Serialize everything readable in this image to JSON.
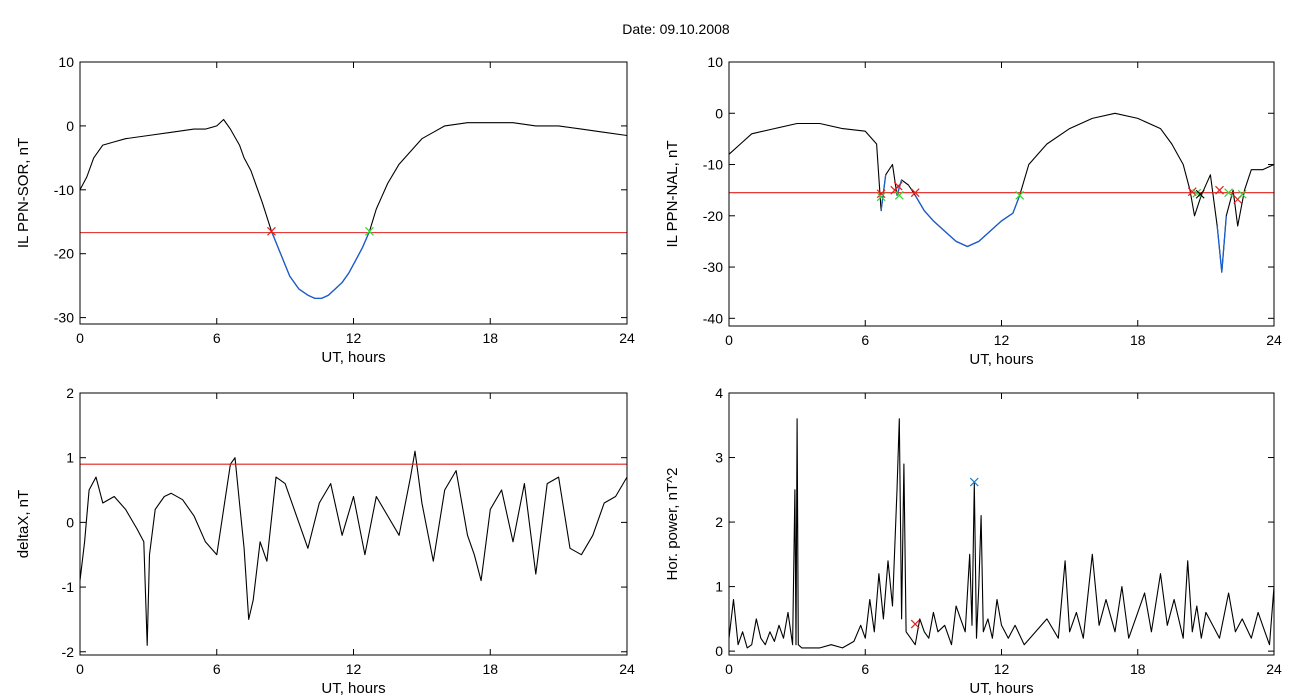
{
  "page": {
    "title": "Date:  09.10.2008"
  },
  "colors": {
    "trace": "#000000",
    "highlight": "#1a5fd0",
    "threshold": "#e0201c",
    "marker_red": "#e0201c",
    "marker_green": "#3bd13b",
    "marker_blue": "#1a7fd0"
  },
  "chart_data": [
    {
      "type": "line",
      "id": "ppn-sor",
      "title": "",
      "xlabel": "UT, hours",
      "ylabel": "IL PPN-SOR, nT",
      "xlim": [
        0,
        24
      ],
      "ylim": [
        -31,
        10
      ],
      "x_ticks": [
        0,
        6,
        12,
        18,
        24
      ],
      "y_ticks": [
        -30,
        -20,
        -10,
        0,
        10
      ],
      "grid": false,
      "threshold": -16.7,
      "series": [
        {
          "x": [
            0,
            0.3,
            0.6,
            1,
            1.5,
            2,
            3,
            4,
            5,
            5.5,
            6,
            6.3,
            6.6,
            7,
            7.2,
            7.5,
            8,
            8.4,
            8.8,
            9.2,
            9.6,
            10,
            10.3,
            10.6,
            10.9,
            11.2,
            11.5,
            11.8,
            12.1,
            12.4,
            12.7,
            13,
            13.5,
            14,
            14.5,
            15,
            15.5,
            16,
            17,
            18,
            19,
            20,
            21,
            22,
            23,
            24
          ],
          "y": [
            -10,
            -8,
            -5,
            -3,
            -2.5,
            -2,
            -1.5,
            -1,
            -0.5,
            -0.5,
            0,
            1,
            -0.5,
            -3,
            -5,
            -7,
            -12,
            -16.5,
            -20,
            -23.5,
            -25.5,
            -26.5,
            -27,
            -27,
            -26.5,
            -25.5,
            -24.5,
            -23,
            -21,
            -19,
            -16.5,
            -13,
            -9,
            -6,
            -4,
            -2,
            -1,
            0,
            0.5,
            0.5,
            0.5,
            0,
            0,
            -0.5,
            -1,
            -1.5
          ]
        }
      ],
      "highlight_range": [
        8.4,
        12.7
      ],
      "markers": [
        {
          "x": 8.4,
          "y": -16.5,
          "color": "red"
        },
        {
          "x": 12.7,
          "y": -16.5,
          "color": "green"
        }
      ]
    },
    {
      "type": "line",
      "id": "ppn-nal",
      "title": "",
      "xlabel": "UT, hours",
      "ylabel": "IL PPN-NAL, nT",
      "xlim": [
        0,
        24
      ],
      "ylim": [
        -41.5,
        10
      ],
      "x_ticks": [
        0,
        6,
        12,
        18,
        24
      ],
      "y_ticks": [
        -40,
        -30,
        -20,
        -10,
        0,
        10
      ],
      "grid": false,
      "threshold": -15.5,
      "series": [
        {
          "x": [
            0,
            0.5,
            1,
            2,
            3,
            4,
            5,
            6,
            6.5,
            6.7,
            6.9,
            7.2,
            7.4,
            7.6,
            7.9,
            8.2,
            8.6,
            9,
            9.5,
            10,
            10.5,
            11,
            11.5,
            12,
            12.5,
            12.8,
            13.2,
            13.6,
            14,
            15,
            16,
            17,
            18,
            19,
            19.5,
            20,
            20.3,
            20.5,
            20.8,
            21.2,
            21.5,
            21.7,
            21.9,
            22.2,
            22.4,
            22.7,
            23,
            23.5,
            24
          ],
          "y": [
            -8,
            -6,
            -4,
            -3,
            -2,
            -2,
            -3,
            -3.5,
            -6,
            -19,
            -12,
            -10,
            -16,
            -13,
            -14,
            -16,
            -19,
            -21,
            -23,
            -25,
            -26,
            -25,
            -23,
            -21,
            -19.5,
            -16,
            -10,
            -8,
            -6,
            -3,
            -1,
            0,
            -1,
            -3,
            -6,
            -10,
            -15,
            -20,
            -16,
            -12,
            -22,
            -31,
            -20,
            -15,
            -22,
            -15,
            -11,
            -11,
            -10
          ]
        }
      ],
      "highlight_ranges": [
        [
          6.6,
          6.9
        ],
        [
          7.3,
          7.6
        ],
        [
          8.2,
          12.8
        ],
        [
          21.5,
          21.9
        ]
      ],
      "markers": [
        {
          "x": 6.7,
          "y": -15.7,
          "color": "red"
        },
        {
          "x": 6.7,
          "y": -16.3,
          "color": "green"
        },
        {
          "x": 7.3,
          "y": -15,
          "color": "red"
        },
        {
          "x": 7.45,
          "y": -14.2,
          "color": "red"
        },
        {
          "x": 7.5,
          "y": -16,
          "color": "green"
        },
        {
          "x": 8.2,
          "y": -15.5,
          "color": "red"
        },
        {
          "x": 12.8,
          "y": -16,
          "color": "green"
        },
        {
          "x": 20.4,
          "y": -15.3,
          "color": "red"
        },
        {
          "x": 20.6,
          "y": -15.6,
          "color": "green"
        },
        {
          "x": 20.75,
          "y": -15.8,
          "color": "black"
        },
        {
          "x": 21.6,
          "y": -15,
          "color": "red"
        },
        {
          "x": 22.0,
          "y": -15.5,
          "color": "green"
        },
        {
          "x": 22.4,
          "y": -16.8,
          "color": "red"
        },
        {
          "x": 22.6,
          "y": -15.8,
          "color": "green"
        }
      ]
    },
    {
      "type": "line",
      "id": "deltax",
      "title": "",
      "xlabel": "UT, hours",
      "ylabel": "deltaX, nT",
      "xlim": [
        0,
        24
      ],
      "ylim": [
        -2.05,
        2
      ],
      "x_ticks": [
        0,
        6,
        12,
        18,
        24
      ],
      "y_ticks": [
        -2,
        -1,
        0,
        1,
        2
      ],
      "grid": false,
      "threshold": 0.9,
      "series": [
        {
          "x": [
            0,
            0.2,
            0.4,
            0.7,
            1,
            1.5,
            2,
            2.5,
            2.8,
            2.95,
            3.05,
            3.3,
            3.7,
            4,
            4.5,
            5,
            5.5,
            6,
            6.3,
            6.6,
            6.8,
            7,
            7.2,
            7.4,
            7.6,
            7.9,
            8.2,
            8.6,
            9,
            9.5,
            10,
            10.5,
            11,
            11.5,
            12,
            12.5,
            13,
            13.5,
            14,
            14.5,
            14.7,
            15,
            15.5,
            16,
            16.5,
            17,
            17.3,
            17.6,
            18,
            18.5,
            19,
            19.5,
            20,
            20.5,
            21,
            21.5,
            22,
            22.5,
            23,
            23.5,
            24
          ],
          "y": [
            -0.9,
            -0.3,
            0.5,
            0.7,
            0.3,
            0.4,
            0.2,
            -0.1,
            -0.3,
            -1.9,
            -0.5,
            0.2,
            0.4,
            0.45,
            0.35,
            0.1,
            -0.3,
            -0.5,
            0.2,
            0.9,
            1.0,
            0.3,
            -0.4,
            -1.5,
            -1.2,
            -0.3,
            -0.6,
            0.7,
            0.6,
            0.1,
            -0.4,
            0.3,
            0.6,
            -0.2,
            0.4,
            -0.5,
            0.4,
            0.1,
            -0.2,
            0.7,
            1.1,
            0.3,
            -0.6,
            0.5,
            0.8,
            -0.2,
            -0.5,
            -0.9,
            0.2,
            0.5,
            -0.3,
            0.6,
            -0.8,
            0.6,
            0.7,
            -0.4,
            -0.5,
            -0.2,
            0.3,
            0.4,
            0.7
          ]
        }
      ]
    },
    {
      "type": "line",
      "id": "hor-power",
      "title": "",
      "xlabel": "UT, hours",
      "ylabel": "Hor. power, nT^2",
      "xlim": [
        0,
        24
      ],
      "ylim": [
        -0.06,
        4
      ],
      "x_ticks": [
        0,
        6,
        12,
        18,
        24
      ],
      "y_ticks": [
        0,
        1,
        2,
        3,
        4
      ],
      "grid": false,
      "series": [
        {
          "x": [
            0,
            0.2,
            0.4,
            0.6,
            0.8,
            1,
            1.2,
            1.4,
            1.6,
            1.8,
            2,
            2.2,
            2.4,
            2.6,
            2.8,
            2.9,
            2.95,
            3.0,
            3.05,
            3.2,
            3.5,
            4,
            4.5,
            5,
            5.5,
            5.8,
            6,
            6.2,
            6.4,
            6.6,
            6.8,
            7,
            7.2,
            7.4,
            7.5,
            7.6,
            7.7,
            7.8,
            8,
            8.2,
            8.4,
            8.6,
            8.8,
            9,
            9.2,
            9.5,
            9.8,
            10,
            10.2,
            10.4,
            10.6,
            10.7,
            10.8,
            10.9,
            11,
            11.1,
            11.2,
            11.4,
            11.6,
            11.8,
            12,
            12.3,
            12.6,
            13,
            13.5,
            14,
            14.5,
            14.8,
            15,
            15.3,
            15.6,
            16,
            16.3,
            16.6,
            17,
            17.3,
            17.6,
            18,
            18.3,
            18.6,
            19,
            19.3,
            19.6,
            20,
            20.2,
            20.4,
            20.6,
            20.8,
            21,
            21.3,
            21.6,
            22,
            22.3,
            22.6,
            23,
            23.3,
            23.6,
            23.8,
            24
          ],
          "y": [
            0.2,
            0.8,
            0.1,
            0.3,
            0.05,
            0.1,
            0.5,
            0.2,
            0.1,
            0.3,
            0.15,
            0.4,
            0.2,
            0.6,
            0.1,
            2.5,
            0.1,
            3.6,
            0.1,
            0.05,
            0.05,
            0.05,
            0.1,
            0.05,
            0.15,
            0.4,
            0.2,
            0.8,
            0.3,
            1.2,
            0.5,
            1.4,
            0.7,
            2.5,
            3.6,
            0.5,
            2.9,
            0.3,
            0.2,
            0.1,
            0.5,
            0.3,
            0.2,
            0.6,
            0.3,
            0.4,
            0.1,
            0.7,
            0.5,
            0.3,
            1.5,
            0.4,
            2.6,
            0.2,
            1.0,
            2.1,
            0.3,
            0.5,
            0.2,
            0.8,
            0.4,
            0.2,
            0.4,
            0.1,
            0.3,
            0.5,
            0.2,
            1.4,
            0.3,
            0.6,
            0.2,
            1.5,
            0.4,
            0.8,
            0.3,
            1.0,
            0.2,
            0.6,
            0.9,
            0.3,
            1.2,
            0.4,
            0.8,
            0.2,
            1.4,
            0.3,
            0.7,
            0.2,
            0.6,
            0.4,
            0.2,
            0.9,
            0.3,
            0.5,
            0.2,
            0.6,
            0.3,
            0.1,
            1.0
          ]
        }
      ],
      "markers": [
        {
          "x": 10.8,
          "y": 2.62,
          "color": "blue"
        },
        {
          "x": 8.2,
          "y": 0.42,
          "color": "red"
        }
      ]
    }
  ]
}
